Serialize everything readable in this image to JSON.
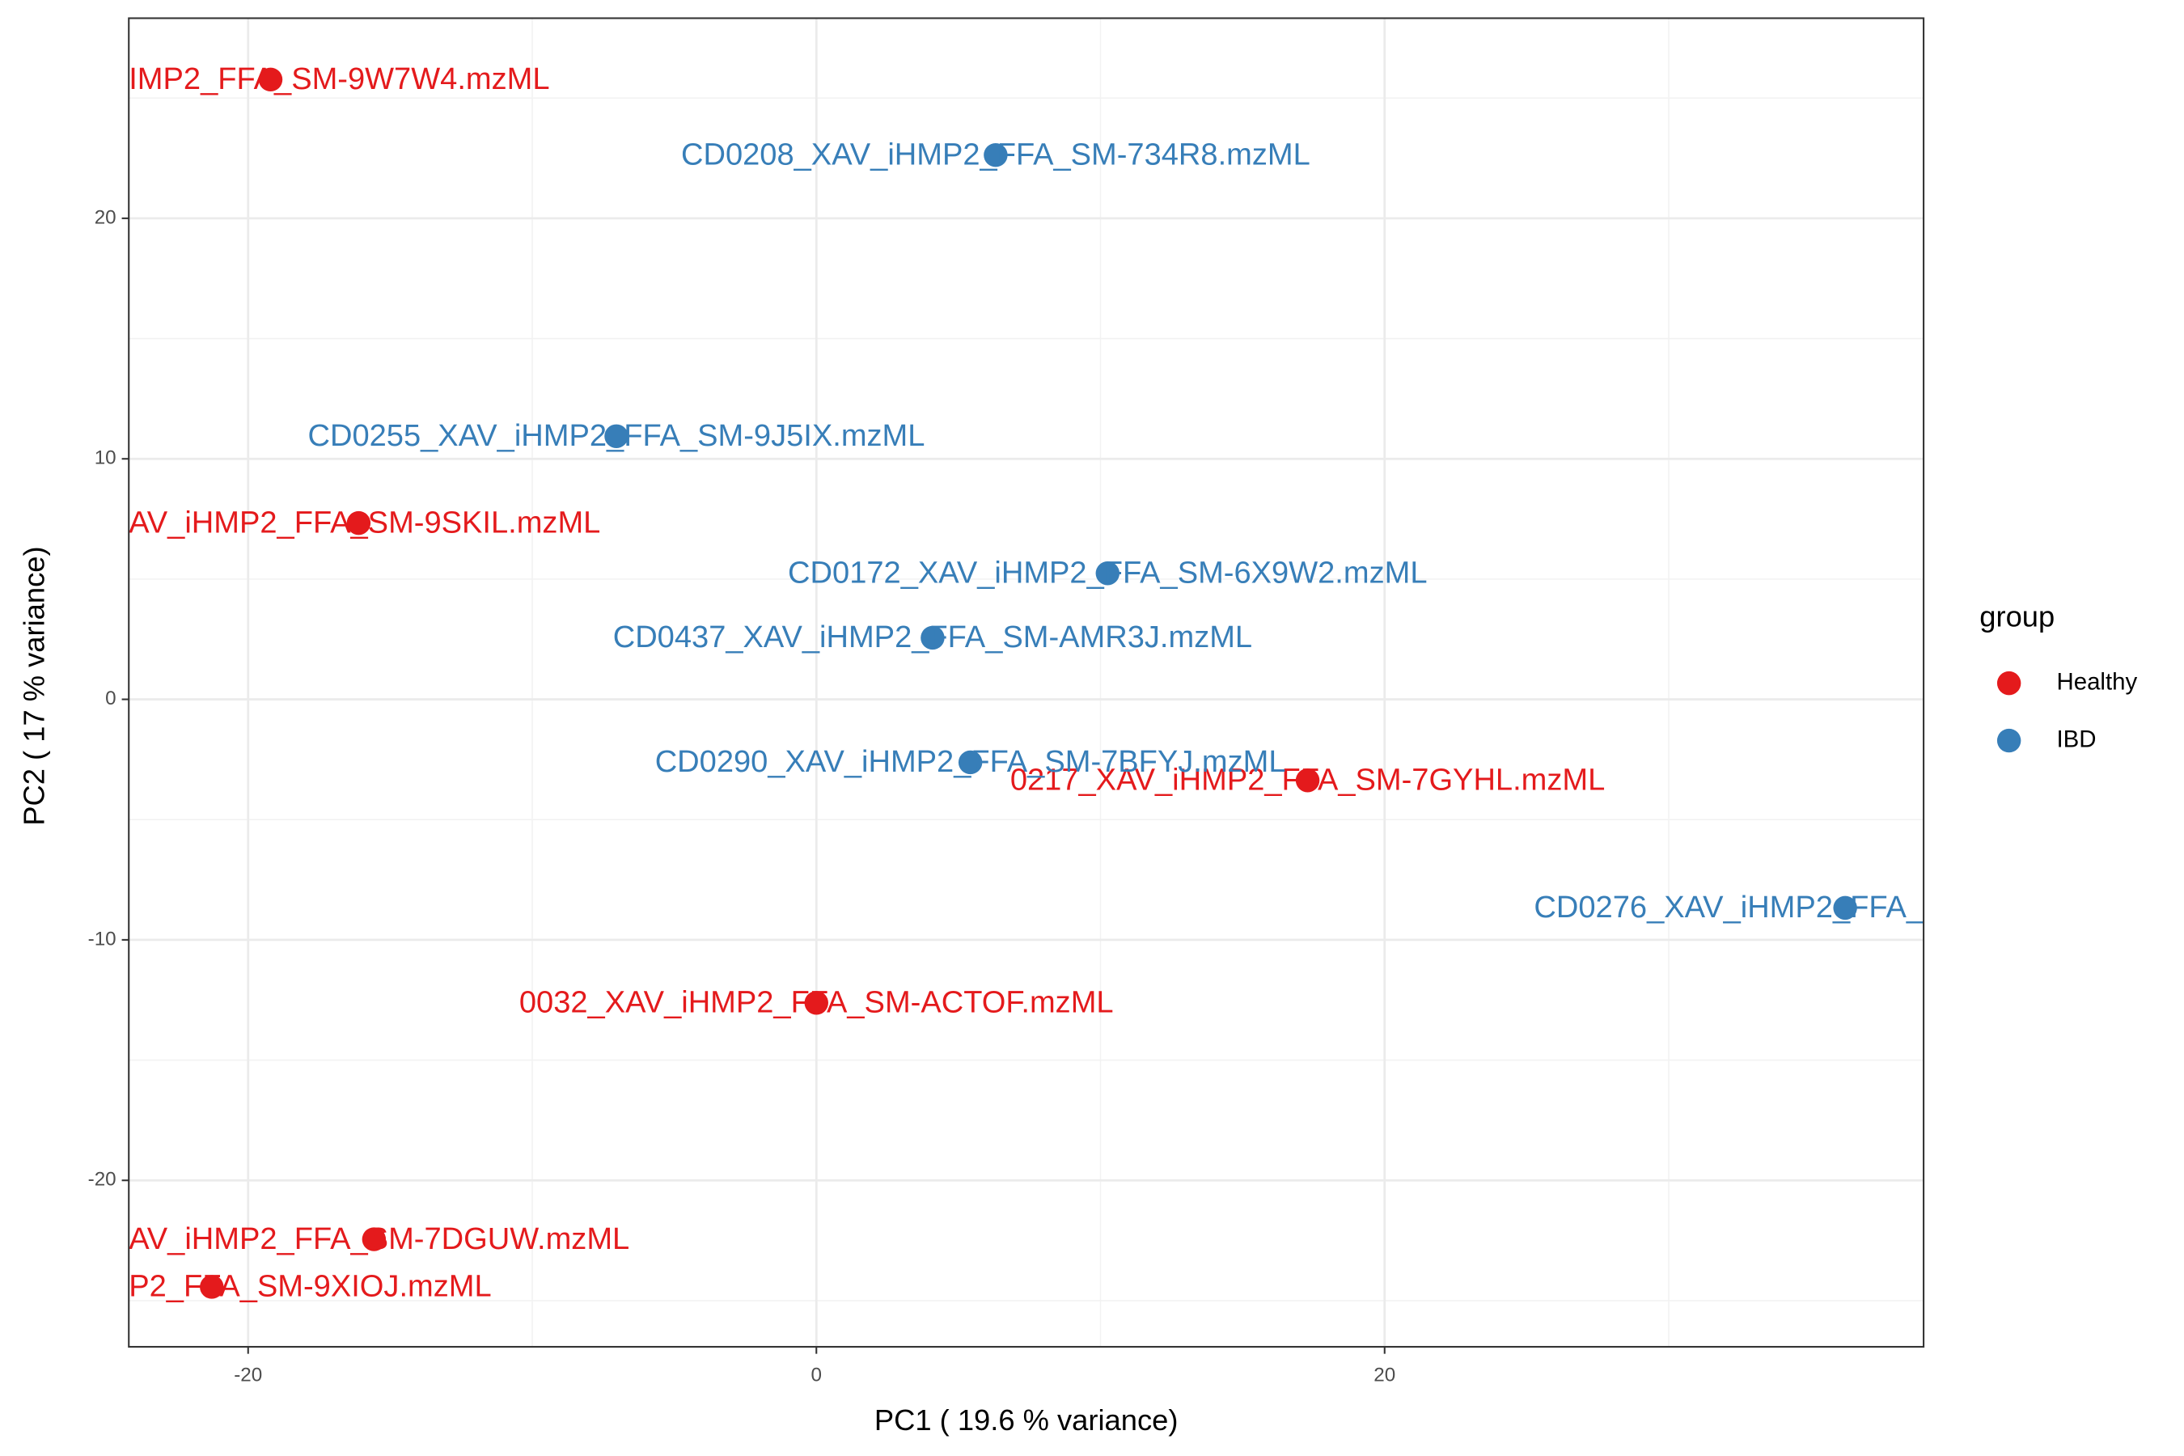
{
  "chart_data": {
    "type": "scatter",
    "x_label": "PC1 ( 19.6 % variance)",
    "y_label": "PC2 ( 17 % variance)",
    "legend_title": "group",
    "legend": "right",
    "grid": true,
    "xlim": [
      -24.2,
      38.97
    ],
    "ylim": [
      -26.92,
      28.32
    ],
    "xticks": [
      -20,
      0,
      20
    ],
    "yticks": [
      -20,
      -10,
      0,
      10,
      20
    ],
    "series": [
      {
        "name": "Healthy",
        "color": "#e41a1c",
        "x": [
          -19.21,
          -16.11,
          17.29,
          0,
          -15.57,
          -21.28
        ],
        "values": [
          25.77,
          7.33,
          -3.37,
          -12.62,
          -22.45,
          -24.43
        ],
        "labels": [
          "IMP2_FFA_SM-9W7W4.mzML",
          "AV_iHMP2_FFA_SM-9SKIL.mzML",
          "0217_XAV_iHMP2_FFA_SM-7GYHL.mzML",
          "0032_XAV_iHMP2_FFA_SM-ACTOF.mzML",
          "AV_iHMP2_FFA_SM-7DGUW.mzML",
          "P2_FFA_SM-9XIOJ.mzML"
        ]
      },
      {
        "name": "IBD",
        "color": "#377eb8",
        "x": [
          6.31,
          -7.04,
          10.25,
          4.09,
          5.42,
          36.21
        ],
        "values": [
          22.63,
          10.94,
          5.24,
          2.56,
          -2.62,
          -8.67
        ],
        "labels": [
          "CD0208_XAV_iHMP2_FFA_SM-734R8.mzML",
          "CD0255_XAV_iHMP2_FFA_SM-9J5IX.mzML",
          "CD0172_XAV_iHMP2_FFA_SM-6X9W2.mzML",
          "CD0437_XAV_iHMP2_FFA_SM-AMR3J.mzML",
          "CD0290_XAV_iHMP2_FFA_SM-7BFYJ.mzML",
          "CD0276_XAV_iHMP2_FFA_"
        ]
      }
    ]
  }
}
